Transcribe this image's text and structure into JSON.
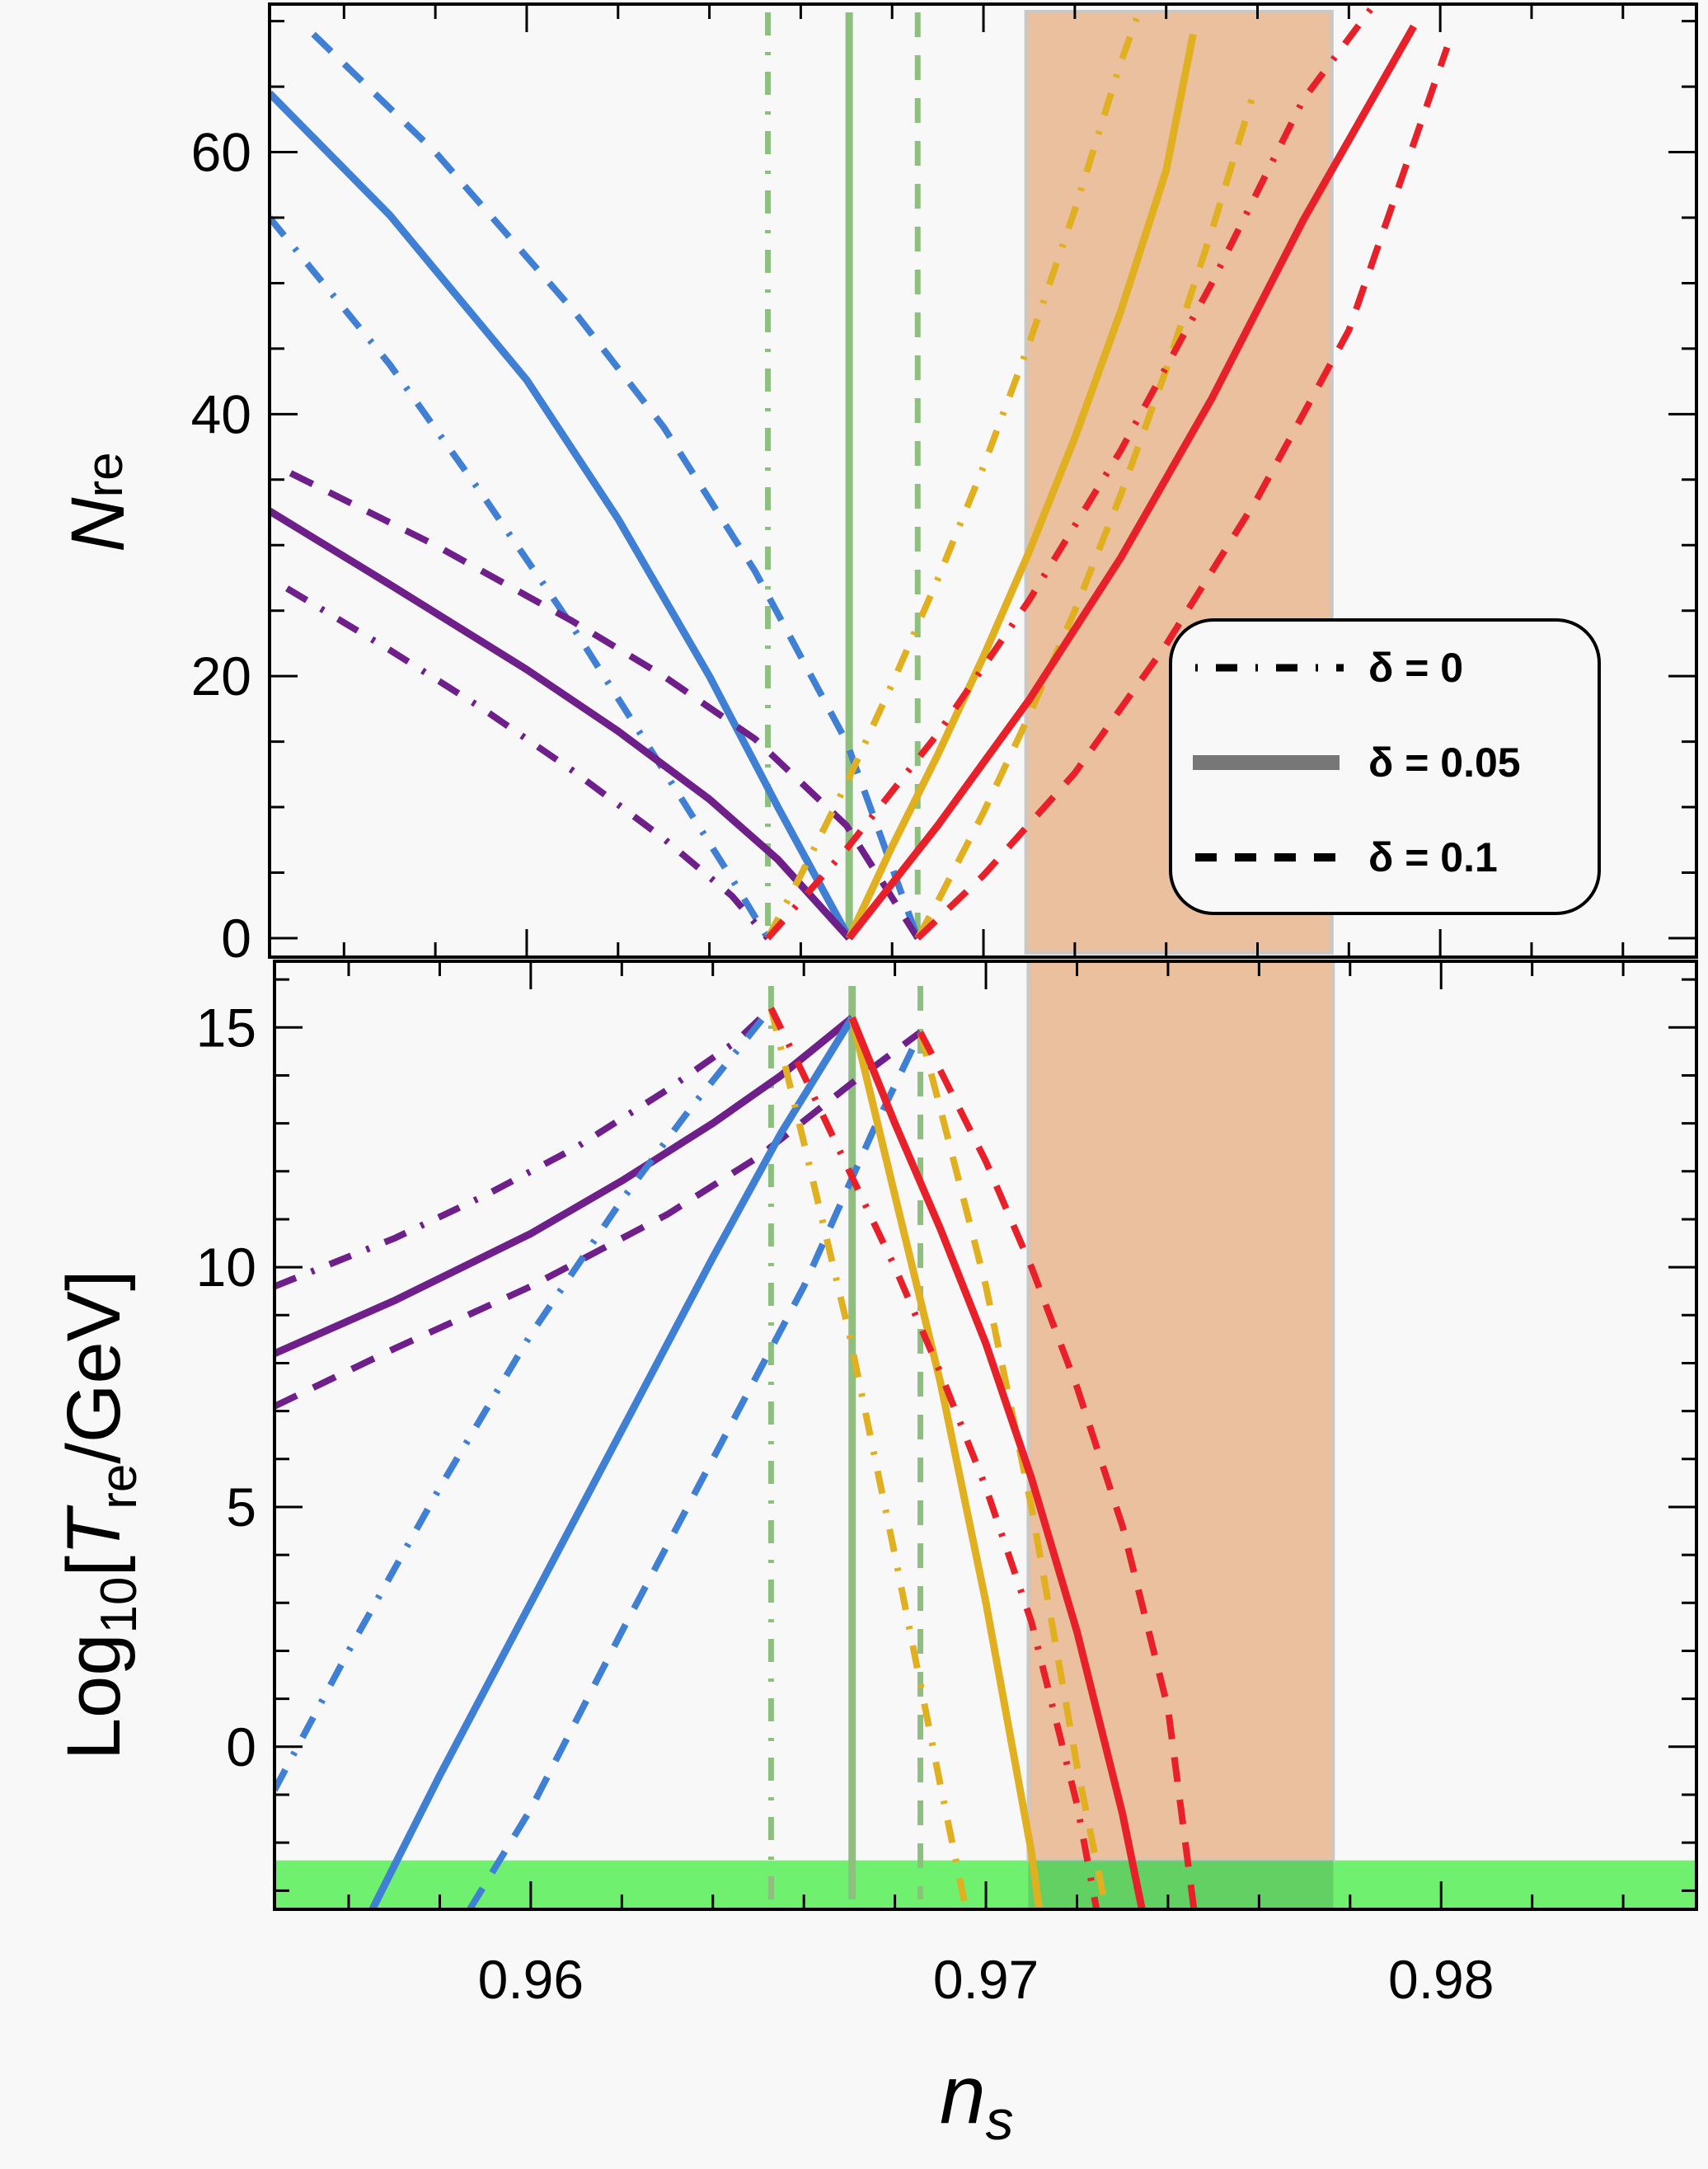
{
  "chart_data": [
    {
      "type": "line",
      "panel": "top",
      "ylabel": "N",
      "ylabel_sub": "re",
      "xlim": [
        0.95437,
        0.98561
      ],
      "ylim": [
        -1.45,
        71.3
      ],
      "yticks": [
        0,
        20,
        40,
        60
      ],
      "ytick_labels": [
        "0",
        "20",
        "40",
        "60"
      ],
      "yminor_step": 5,
      "grid": false,
      "legend": {
        "placement": "right",
        "entries": [
          {
            "label": "δ = 0",
            "style": "dotdash"
          },
          {
            "label": "δ = 0.05",
            "style": "solid"
          },
          {
            "label": "δ = 0.1",
            "style": "dashed"
          }
        ]
      },
      "vlines": [
        {
          "x": 0.96528,
          "style": "dotdash",
          "color": "#8fbf7f"
        },
        {
          "x": 0.96706,
          "style": "solid",
          "color": "#8fbf7f"
        },
        {
          "x": 0.96856,
          "style": "dashed",
          "color": "#8fbf7f"
        }
      ],
      "band": {
        "x": [
          0.97093,
          0.97763
        ],
        "color": "#e6ad82"
      },
      "series": [
        {
          "name": "blue-solid",
          "color": "#3f7fd4",
          "style": "solid",
          "x": [
            0.95437,
            0.957,
            0.96,
            0.962,
            0.964,
            0.9655,
            0.96706
          ],
          "y": [
            64.5,
            55.2,
            42.6,
            32.0,
            20.0,
            10.0,
            0
          ]
        },
        {
          "name": "blue-dotdash",
          "color": "#3f7fd4",
          "style": "dotdash",
          "x": [
            0.95437,
            0.957,
            0.959,
            0.961,
            0.963,
            0.9645,
            0.96528
          ],
          "y": [
            55.0,
            43.8,
            34.0,
            23.8,
            12.8,
            4.5,
            0
          ]
        },
        {
          "name": "blue-dashed",
          "color": "#3f7fd4",
          "style": "dashed",
          "x": [
            0.95533,
            0.958,
            0.961,
            0.963,
            0.965,
            0.967,
            0.96856
          ],
          "y": [
            69.0,
            60.0,
            48.0,
            39.0,
            28.0,
            15.0,
            0
          ]
        },
        {
          "name": "purple-solid",
          "color": "#6e1f8a",
          "style": "solid",
          "x": [
            0.95437,
            0.957,
            0.96,
            0.962,
            0.964,
            0.9655,
            0.96706
          ],
          "y": [
            32.6,
            27.0,
            20.5,
            15.8,
            10.6,
            6.0,
            0
          ]
        },
        {
          "name": "purple-dotdash",
          "color": "#6e1f8a",
          "style": "dotdash",
          "x": [
            0.95475,
            0.957,
            0.959,
            0.961,
            0.963,
            0.9645,
            0.96528
          ],
          "y": [
            26.7,
            22.0,
            17.6,
            12.8,
            7.6,
            3.2,
            0
          ]
        },
        {
          "name": "purple-dashed",
          "color": "#6e1f8a",
          "style": "dashed",
          "x": [
            0.95483,
            0.958,
            0.961,
            0.963,
            0.965,
            0.967,
            0.96856
          ],
          "y": [
            35.5,
            30.0,
            24.2,
            20.0,
            15.2,
            8.6,
            0
          ]
        },
        {
          "name": "orange-solid",
          "color": "#e0b020",
          "style": "solid",
          "x": [
            0.96706,
            0.968,
            0.969,
            0.97,
            0.971,
            0.972,
            0.973,
            0.974,
            0.97459
          ],
          "y": [
            0,
            7.0,
            14.0,
            21.5,
            29.5,
            38.2,
            47.8,
            58.6,
            69.0
          ]
        },
        {
          "name": "orange-dotdash",
          "color": "#e0b020",
          "style": "dotdash",
          "x": [
            0.96528,
            0.966,
            0.967,
            0.968,
            0.969,
            0.97,
            0.971,
            0.972,
            0.973,
            0.97347
          ],
          "y": [
            0,
            4.8,
            11.8,
            19.4,
            27.4,
            36.0,
            45.4,
            55.6,
            66.8,
            71.3
          ]
        },
        {
          "name": "orange-dashed",
          "color": "#e0b020",
          "style": "dashed",
          "x": [
            0.96856,
            0.969,
            0.97,
            0.971,
            0.972,
            0.973,
            0.974,
            0.975,
            0.97587
          ],
          "y": [
            0,
            2.8,
            9.6,
            17.0,
            25.0,
            33.8,
            43.4,
            54.0,
            64.0
          ]
        },
        {
          "name": "red-solid",
          "color": "#e8202a",
          "style": "solid",
          "x": [
            0.96706,
            0.969,
            0.971,
            0.973,
            0.975,
            0.977,
            0.97942
          ],
          "y": [
            0,
            8.6,
            18.2,
            29.0,
            41.2,
            54.8,
            69.6
          ]
        },
        {
          "name": "red-dotdash",
          "color": "#e8202a",
          "style": "dotdash",
          "x": [
            0.96528,
            0.967,
            0.969,
            0.971,
            0.973,
            0.975,
            0.977,
            0.97856
          ],
          "y": [
            0,
            6.8,
            15.6,
            25.8,
            37.2,
            50.0,
            64.0,
            71.3
          ]
        },
        {
          "name": "red-dashed",
          "color": "#e8202a",
          "style": "dashed",
          "x": [
            0.96856,
            0.97,
            0.972,
            0.974,
            0.976,
            0.978,
            0.98015
          ],
          "y": [
            0,
            4.8,
            12.6,
            22.4,
            33.6,
            46.4,
            68.0
          ]
        }
      ]
    },
    {
      "type": "line",
      "panel": "bottom",
      "ylabel": "Log",
      "ylabel_sub": "10",
      "ylabel_bracket_open": "[",
      "ylabel_T": "T",
      "ylabel_T_sub": "re",
      "ylabel_tail": "/GeV]",
      "xlabel": "n",
      "xlabel_sub": "s",
      "xlim": [
        0.95437,
        0.98561
      ],
      "ylim": [
        -3.39,
        16.38
      ],
      "xticks": [
        0.96,
        0.97,
        0.98
      ],
      "xtick_labels": [
        "0.96",
        "0.97",
        "0.98"
      ],
      "xminor_step": 0.002,
      "yticks": [
        0,
        5,
        10,
        15
      ],
      "ytick_labels": [
        "0",
        "5",
        "10",
        "15"
      ],
      "yminor_step": 1,
      "grid": false,
      "hband": {
        "y": [
          -3.39,
          -2.37
        ],
        "color": "#6ff06f"
      },
      "vlines": [
        {
          "x": 0.96528,
          "style": "dotdash",
          "color": "#8fbf7f"
        },
        {
          "x": 0.96706,
          "style": "solid",
          "color": "#8fbf7f"
        },
        {
          "x": 0.96856,
          "style": "dashed",
          "color": "#8fbf7f"
        }
      ],
      "band": {
        "x": [
          0.97093,
          0.97763
        ],
        "color": "#e6ad82"
      },
      "series": [
        {
          "name": "purple-solid",
          "color": "#6e1f8a",
          "style": "solid",
          "x": [
            0.95437,
            0.957,
            0.96,
            0.962,
            0.964,
            0.9655,
            0.96706
          ],
          "y": [
            8.2,
            9.3,
            10.7,
            11.8,
            13.0,
            14.0,
            15.2
          ]
        },
        {
          "name": "purple-dotdash",
          "color": "#6e1f8a",
          "style": "dotdash",
          "x": [
            0.95437,
            0.957,
            0.959,
            0.961,
            0.963,
            0.9645,
            0.96528
          ],
          "y": [
            9.6,
            10.6,
            11.5,
            12.5,
            13.7,
            14.7,
            15.4
          ]
        },
        {
          "name": "purple-dashed",
          "color": "#6e1f8a",
          "style": "dashed",
          "x": [
            0.95437,
            0.957,
            0.96,
            0.963,
            0.965,
            0.967,
            0.96856
          ],
          "y": [
            7.1,
            8.3,
            9.6,
            11.1,
            12.3,
            13.8,
            14.9
          ]
        },
        {
          "name": "blue-solid",
          "color": "#3f7fd4",
          "style": "solid",
          "x": [
            0.95652,
            0.958,
            0.96,
            0.962,
            0.964,
            0.9655,
            0.96706
          ],
          "y": [
            -3.39,
            -0.6,
            3.0,
            6.6,
            10.2,
            12.8,
            15.2
          ]
        },
        {
          "name": "blue-dotdash",
          "color": "#3f7fd4",
          "style": "dotdash",
          "x": [
            0.95437,
            0.956,
            0.958,
            0.96,
            0.962,
            0.9635,
            0.96528
          ],
          "y": [
            -0.9,
            2.0,
            5.4,
            8.6,
            11.4,
            13.3,
            15.4
          ]
        },
        {
          "name": "blue-dashed",
          "color": "#3f7fd4",
          "style": "dashed",
          "x": [
            0.95866,
            0.96,
            0.962,
            0.964,
            0.966,
            0.9675,
            0.96856
          ],
          "y": [
            -3.39,
            -1.3,
            2.4,
            6.0,
            9.6,
            12.8,
            14.9
          ]
        },
        {
          "name": "orange-solid",
          "color": "#e0b020",
          "style": "solid",
          "x": [
            0.96706,
            0.968,
            0.969,
            0.97,
            0.971,
            0.97117
          ],
          "y": [
            15.2,
            11.5,
            7.6,
            3.0,
            -2.2,
            -3.39
          ]
        },
        {
          "name": "orange-dotdash",
          "color": "#e0b020",
          "style": "dotdash",
          "x": [
            0.96528,
            0.966,
            0.967,
            0.968,
            0.969,
            0.96956
          ],
          "y": [
            15.4,
            12.6,
            8.6,
            4.0,
            -0.8,
            -3.39
          ]
        },
        {
          "name": "orange-dashed",
          "color": "#e0b020",
          "style": "dashed",
          "x": [
            0.96856,
            0.969,
            0.97,
            0.971,
            0.972,
            0.97264
          ],
          "y": [
            14.9,
            13.3,
            9.6,
            5.0,
            -0.4,
            -3.39
          ]
        },
        {
          "name": "red-solid",
          "color": "#e8202a",
          "style": "solid",
          "x": [
            0.96706,
            0.968,
            0.969,
            0.97,
            0.971,
            0.972,
            0.973,
            0.97343
          ],
          "y": [
            15.2,
            13.0,
            10.8,
            8.4,
            5.6,
            2.4,
            -1.4,
            -3.39
          ]
        },
        {
          "name": "red-dotdash",
          "color": "#e8202a",
          "style": "dotdash",
          "x": [
            0.96528,
            0.966,
            0.967,
            0.968,
            0.969,
            0.97,
            0.971,
            0.972,
            0.97243
          ],
          "y": [
            15.4,
            14.0,
            12.0,
            10.0,
            7.8,
            5.4,
            2.6,
            -1.2,
            -3.39
          ]
        },
        {
          "name": "red-dashed",
          "color": "#e8202a",
          "style": "dashed",
          "x": [
            0.96856,
            0.969,
            0.97,
            0.971,
            0.972,
            0.973,
            0.974,
            0.97457
          ],
          "y": [
            14.9,
            14.1,
            12.2,
            10.0,
            7.5,
            4.6,
            0.8,
            -3.39
          ]
        }
      ]
    }
  ]
}
